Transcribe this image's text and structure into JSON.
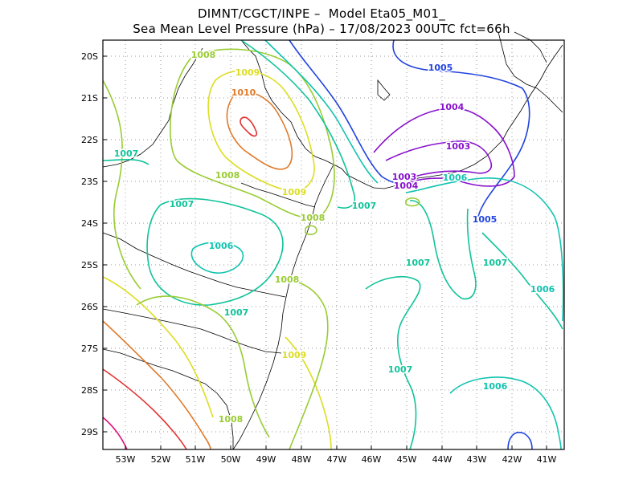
{
  "title": {
    "line1": "DIMNT/CGCT/INPE –  Model Eta05_M01_",
    "line2": "Sea Mean Level Pressure (hPa) – 17/08/2023 00UTC fct=66h"
  },
  "axes": {
    "lon_labels": [
      "53W",
      "52W",
      "51W",
      "50W",
      "49W",
      "48W",
      "47W",
      "46W",
      "45W",
      "44W",
      "43W",
      "42W",
      "41W"
    ],
    "lat_labels": [
      "20S",
      "21S",
      "22S",
      "23S",
      "24S",
      "25S",
      "26S",
      "27S",
      "28S",
      "29S"
    ]
  },
  "contour_labels": [
    {
      "text": "1008",
      "color": "#99cc33"
    },
    {
      "text": "1009",
      "color": "#dddd22"
    },
    {
      "text": "1010",
      "color": "#e07a2a"
    },
    {
      "text": "1007",
      "color": "#11c39a"
    },
    {
      "text": "1008",
      "color": "#99cc33"
    },
    {
      "text": "1009",
      "color": "#dddd22"
    },
    {
      "text": "1007",
      "color": "#11c39a"
    },
    {
      "text": "1008",
      "color": "#99cc33"
    },
    {
      "text": "1006",
      "color": "#11c3b0"
    },
    {
      "text": "1007",
      "color": "#11c39a"
    },
    {
      "text": "1008",
      "color": "#99cc33"
    },
    {
      "text": "1009",
      "color": "#dddd22"
    },
    {
      "text": "1008",
      "color": "#99cc33"
    },
    {
      "text": "1005",
      "color": "#2244dd"
    },
    {
      "text": "1004",
      "color": "#8811cc"
    },
    {
      "text": "1003",
      "color": "#8811cc"
    },
    {
      "text": "1003",
      "color": "#8811cc"
    },
    {
      "text": "1004",
      "color": "#8811cc"
    },
    {
      "text": "1006",
      "color": "#11c3b0"
    },
    {
      "text": "1007",
      "color": "#11c39a"
    },
    {
      "text": "1005",
      "color": "#2244dd"
    },
    {
      "text": "1007",
      "color": "#11c39a"
    },
    {
      "text": "1007",
      "color": "#11c39a"
    },
    {
      "text": "1006",
      "color": "#11c3b0"
    },
    {
      "text": "1007",
      "color": "#11c39a"
    },
    {
      "text": "1006",
      "color": "#11c3b0"
    }
  ]
}
